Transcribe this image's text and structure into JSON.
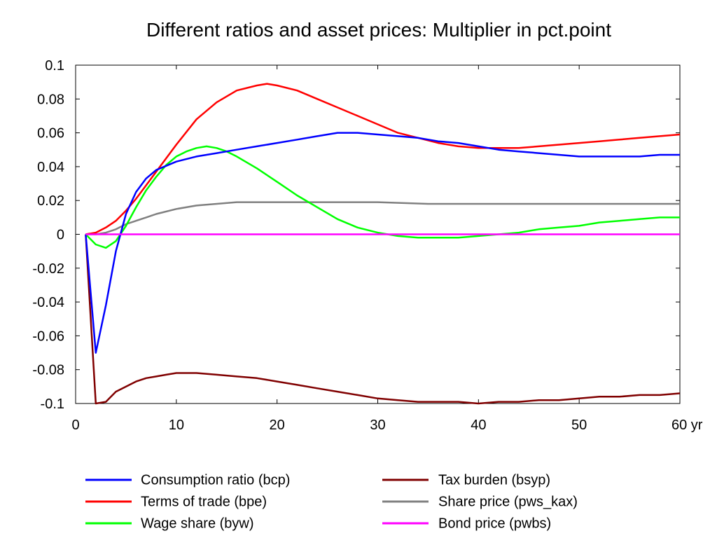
{
  "chart_data": {
    "type": "line",
    "title": "Different ratios and asset prices: Multiplier in pct.point",
    "xlabel": "",
    "ylabel": "",
    "x_unit_label": "yr",
    "xlim": [
      0,
      60
    ],
    "ylim": [
      -0.1,
      0.1
    ],
    "x_ticks": [
      0,
      10,
      20,
      30,
      40,
      50,
      60
    ],
    "x_tick_labels": [
      "0",
      "10",
      "20",
      "30",
      "40",
      "50",
      "60 yr"
    ],
    "y_ticks": [
      -0.1,
      -0.08,
      -0.06,
      -0.04,
      -0.02,
      0,
      0.02,
      0.04,
      0.06,
      0.08,
      0.1
    ],
    "y_tick_labels": [
      "-0.1",
      "-0.08",
      "-0.06",
      "-0.04",
      "-0.02",
      "0",
      "0.02",
      "0.04",
      "0.06",
      "0.08",
      "0.1"
    ],
    "grid": false,
    "legend_position": "bottom",
    "series": [
      {
        "name": "Consumption ratio (bcp)",
        "color": "#0000ff",
        "x": [
          1,
          2,
          3,
          4,
          5,
          6,
          7,
          8,
          10,
          12,
          14,
          16,
          18,
          20,
          22,
          24,
          26,
          28,
          30,
          32,
          34,
          36,
          38,
          40,
          42,
          44,
          46,
          48,
          50,
          52,
          54,
          56,
          58,
          60
        ],
        "values": [
          0,
          -0.07,
          -0.042,
          -0.01,
          0.012,
          0.025,
          0.033,
          0.038,
          0.043,
          0.046,
          0.048,
          0.05,
          0.052,
          0.054,
          0.056,
          0.058,
          0.06,
          0.06,
          0.059,
          0.058,
          0.057,
          0.055,
          0.054,
          0.052,
          0.05,
          0.049,
          0.048,
          0.047,
          0.046,
          0.046,
          0.046,
          0.046,
          0.047,
          0.047
        ]
      },
      {
        "name": "Terms of trade (bpe)",
        "color": "#ff0000",
        "x": [
          1,
          2,
          3,
          4,
          5,
          6,
          7,
          8,
          10,
          12,
          14,
          16,
          18,
          19,
          20,
          22,
          24,
          26,
          28,
          30,
          32,
          34,
          36,
          38,
          40,
          42,
          44,
          46,
          48,
          50,
          52,
          54,
          56,
          58,
          60
        ],
        "values": [
          0,
          0.001,
          0.004,
          0.008,
          0.014,
          0.021,
          0.029,
          0.037,
          0.053,
          0.068,
          0.078,
          0.085,
          0.088,
          0.089,
          0.088,
          0.085,
          0.08,
          0.075,
          0.07,
          0.065,
          0.06,
          0.057,
          0.054,
          0.052,
          0.051,
          0.051,
          0.051,
          0.052,
          0.053,
          0.054,
          0.055,
          0.056,
          0.057,
          0.058,
          0.059
        ]
      },
      {
        "name": "Wage share (byw)",
        "color": "#00ff00",
        "x": [
          1,
          2,
          3,
          4,
          5,
          6,
          7,
          8,
          9,
          10,
          11,
          12,
          13,
          14,
          15,
          16,
          18,
          20,
          22,
          24,
          26,
          28,
          30,
          32,
          34,
          36,
          38,
          40,
          42,
          44,
          46,
          48,
          50,
          52,
          54,
          56,
          58,
          60
        ],
        "values": [
          0,
          -0.006,
          -0.008,
          -0.004,
          0.005,
          0.016,
          0.026,
          0.034,
          0.041,
          0.046,
          0.049,
          0.051,
          0.052,
          0.051,
          0.049,
          0.046,
          0.039,
          0.031,
          0.023,
          0.016,
          0.009,
          0.004,
          0.001,
          -0.001,
          -0.002,
          -0.002,
          -0.002,
          -0.001,
          0,
          0.001,
          0.003,
          0.004,
          0.005,
          0.007,
          0.008,
          0.009,
          0.01,
          0.01
        ]
      },
      {
        "name": "Tax burden (bsyp)",
        "color": "#800000",
        "x": [
          1,
          2,
          3,
          4,
          5,
          6,
          7,
          8,
          9,
          10,
          11,
          12,
          14,
          16,
          18,
          20,
          22,
          24,
          26,
          28,
          30,
          32,
          34,
          36,
          38,
          40,
          42,
          44,
          46,
          48,
          50,
          52,
          54,
          56,
          58,
          60
        ],
        "values": [
          0,
          -0.1,
          -0.099,
          -0.093,
          -0.09,
          -0.087,
          -0.085,
          -0.084,
          -0.083,
          -0.082,
          -0.082,
          -0.082,
          -0.083,
          -0.084,
          -0.085,
          -0.087,
          -0.089,
          -0.091,
          -0.093,
          -0.095,
          -0.097,
          -0.098,
          -0.099,
          -0.099,
          -0.099,
          -0.1,
          -0.099,
          -0.099,
          -0.098,
          -0.098,
          -0.097,
          -0.096,
          -0.096,
          -0.095,
          -0.095,
          -0.094
        ]
      },
      {
        "name": "Share price (pws_kax)",
        "color": "#808080",
        "x": [
          1,
          2,
          3,
          4,
          5,
          6,
          7,
          8,
          10,
          12,
          14,
          16,
          18,
          20,
          25,
          30,
          35,
          40,
          45,
          50,
          55,
          60
        ],
        "values": [
          0,
          0,
          0.001,
          0.003,
          0.006,
          0.008,
          0.01,
          0.012,
          0.015,
          0.017,
          0.018,
          0.019,
          0.019,
          0.019,
          0.019,
          0.019,
          0.018,
          0.018,
          0.018,
          0.018,
          0.018,
          0.018
        ]
      },
      {
        "name": "Bond price (pwbs)",
        "color": "#ff00ff",
        "x": [
          1,
          60
        ],
        "values": [
          0,
          0
        ]
      }
    ]
  }
}
